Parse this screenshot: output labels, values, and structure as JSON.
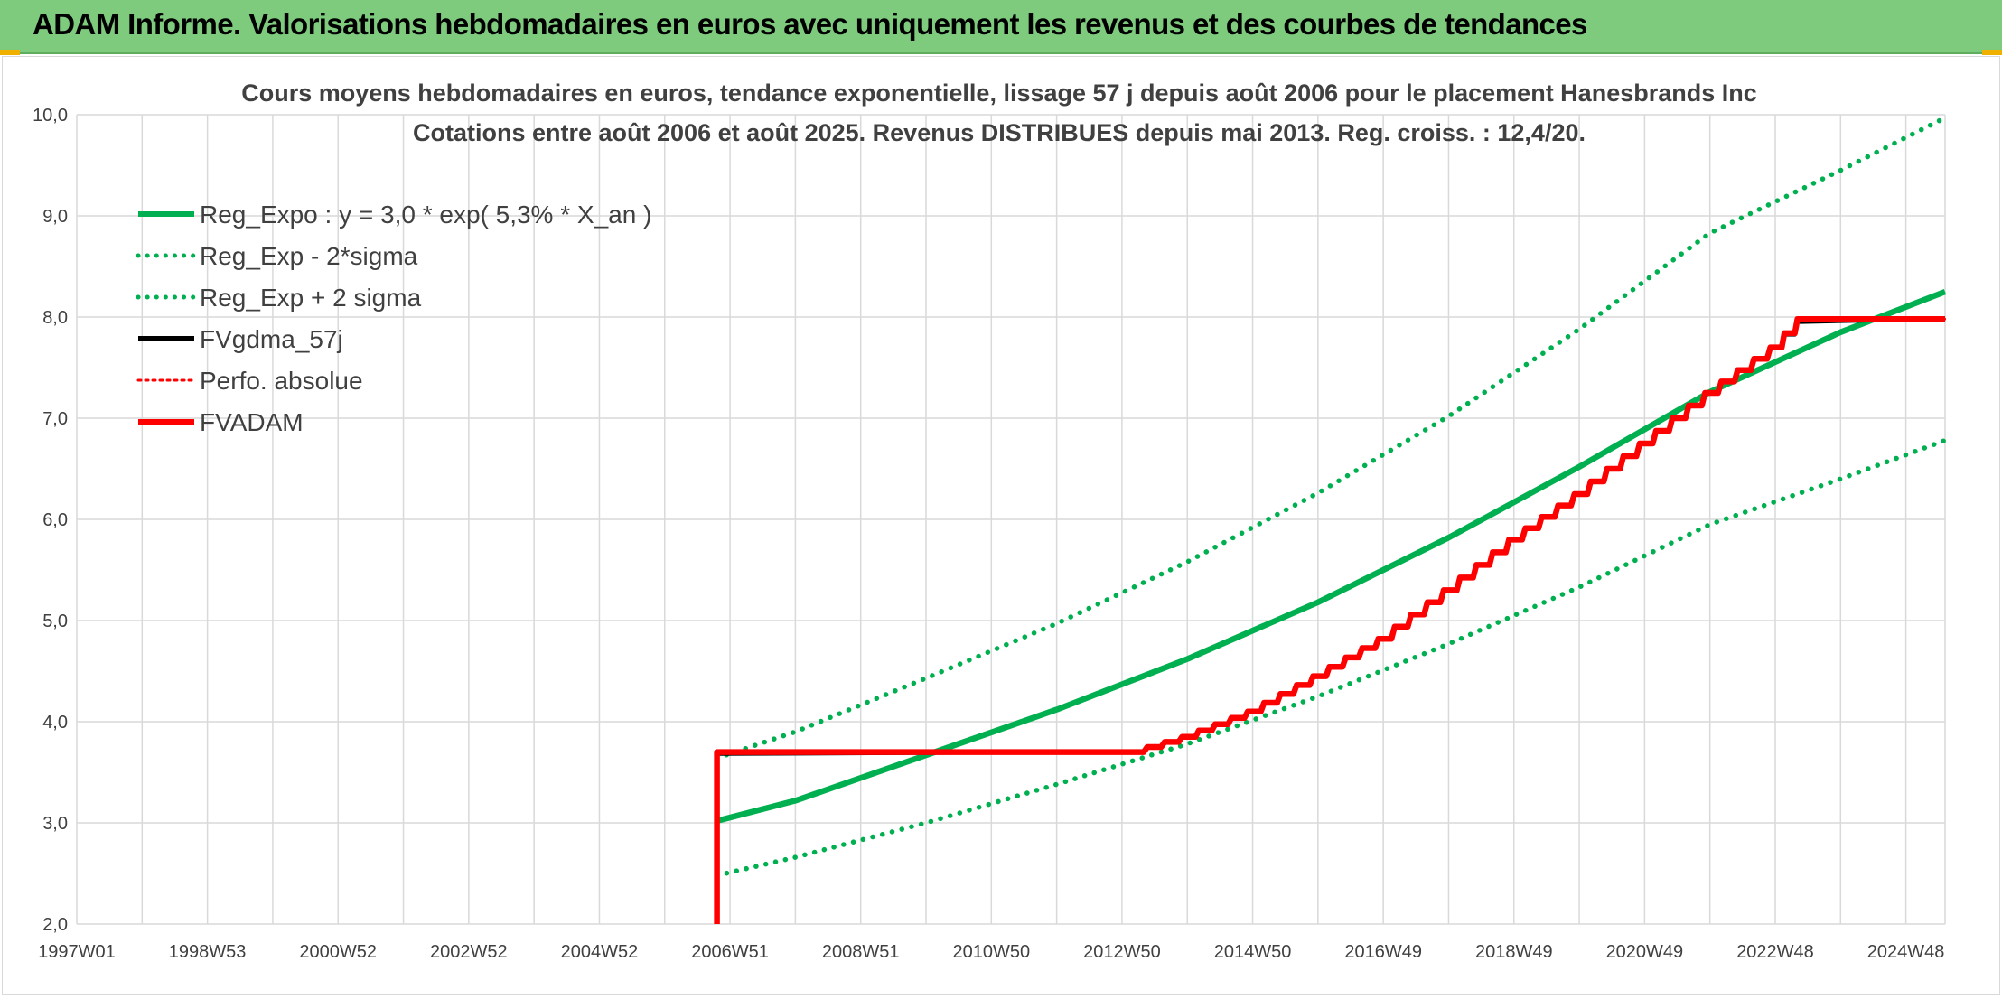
{
  "banner": {
    "title": "ADAM Informe. Valorisations hebdomadaires en euros avec uniquement les revenus et des courbes de tendances"
  },
  "colors": {
    "banner_bg": "#7ecb7e",
    "regression": "#00b050",
    "fvgdma": "#000000",
    "fvadam": "#ff0000",
    "grid": "#d9d9d9"
  },
  "chart_data": {
    "type": "line",
    "title": "Cours moyens hebdomadaires en euros, tendance exponentielle, lissage 57 j depuis août 2006 pour le placement Hanesbrands Inc",
    "subtitle": "Cotations entre août 2006 et août 2025. Revenus DISTRIBUES depuis mai 2013. Reg. croiss. : 12,4/20.",
    "xlabel": "",
    "ylabel": "",
    "ylim": [
      2.0,
      10.0
    ],
    "yticks": [
      "2,0",
      "3,0",
      "4,0",
      "5,0",
      "6,0",
      "7,0",
      "8,0",
      "9,0",
      "10,0"
    ],
    "xlim": [
      1997.0,
      2025.6
    ],
    "xticks": [
      {
        "label": "1997W01",
        "year": 1997.0
      },
      {
        "label": "1998W53",
        "year": 1999.0
      },
      {
        "label": "2000W52",
        "year": 2001.0
      },
      {
        "label": "2002W52",
        "year": 2003.0
      },
      {
        "label": "2004W52",
        "year": 2005.0
      },
      {
        "label": "2006W51",
        "year": 2007.0
      },
      {
        "label": "2008W51",
        "year": 2009.0
      },
      {
        "label": "2010W50",
        "year": 2011.0
      },
      {
        "label": "2012W50",
        "year": 2013.0
      },
      {
        "label": "2014W50",
        "year": 2015.0
      },
      {
        "label": "2016W49",
        "year": 2017.0
      },
      {
        "label": "2018W49",
        "year": 2019.0
      },
      {
        "label": "2020W49",
        "year": 2021.0
      },
      {
        "label": "2022W48",
        "year": 2023.0
      },
      {
        "label": "2024W48",
        "year": 2025.0
      }
    ],
    "grid": true,
    "legend_position": "top-left",
    "series": [
      {
        "name": "Reg_Expo : y = 3,0 * exp( 5,3% *  X_an )",
        "style": "solid",
        "color": "#00b050",
        "x": [
          2006.8,
          2008.0,
          2010.0,
          2012.0,
          2014.0,
          2016.0,
          2018.0,
          2020.0,
          2022.0,
          2024.0,
          2025.6
        ],
        "values": [
          3.02,
          3.22,
          3.67,
          4.12,
          4.62,
          5.18,
          5.82,
          6.52,
          7.26,
          7.85,
          8.25
        ]
      },
      {
        "name": "Reg_Exp - 2*sigma",
        "style": "dotted",
        "color": "#00b050",
        "x": [
          2006.8,
          2008.0,
          2010.0,
          2012.0,
          2014.0,
          2016.0,
          2018.0,
          2020.0,
          2022.0,
          2024.0,
          2025.6
        ],
        "values": [
          2.48,
          2.66,
          3.0,
          3.38,
          3.78,
          4.25,
          4.77,
          5.33,
          5.95,
          6.4,
          6.78
        ]
      },
      {
        "name": "Reg_Exp + 2 sigma",
        "style": "dotted",
        "color": "#00b050",
        "x": [
          2006.8,
          2008.0,
          2010.0,
          2012.0,
          2014.0,
          2016.0,
          2018.0,
          2020.0,
          2022.0,
          2024.0,
          2025.6
        ],
        "values": [
          3.64,
          3.9,
          4.43,
          4.97,
          5.58,
          6.26,
          7.02,
          7.88,
          8.83,
          9.45,
          9.97
        ]
      },
      {
        "name": "FVgdma_57j",
        "style": "solid",
        "color": "#000000",
        "x": [
          2006.8,
          2013.2,
          2014.0,
          2015.0,
          2016.0,
          2017.0,
          2018.0,
          2019.0,
          2020.0,
          2021.0,
          2022.0,
          2023.0,
          2023.4,
          2025.6
        ],
        "values": [
          3.68,
          3.7,
          3.85,
          4.1,
          4.45,
          4.82,
          5.3,
          5.8,
          6.25,
          6.75,
          7.25,
          7.7,
          7.95,
          7.98
        ]
      },
      {
        "name": "Perfo. absolue",
        "style": "dotted",
        "color": "#ff0000",
        "x": [
          2006.8,
          2013.2,
          2014.0,
          2015.0,
          2016.0,
          2017.0,
          2018.0,
          2019.0,
          2020.0,
          2021.0,
          2022.0,
          2023.0,
          2023.4,
          2025.6
        ],
        "values": [
          3.7,
          3.7,
          3.85,
          4.1,
          4.45,
          4.82,
          5.3,
          5.8,
          6.25,
          6.75,
          7.25,
          7.7,
          7.98,
          7.98
        ]
      },
      {
        "name": "FVADAM",
        "style": "solid",
        "color": "#ff0000",
        "x": [
          2006.8,
          2006.8,
          2013.2,
          2014.0,
          2015.0,
          2016.0,
          2017.0,
          2018.0,
          2019.0,
          2020.0,
          2021.0,
          2022.0,
          2023.0,
          2023.4,
          2025.6
        ],
        "values": [
          2.0,
          3.7,
          3.7,
          3.85,
          4.1,
          4.45,
          4.82,
          5.3,
          5.8,
          6.25,
          6.75,
          7.25,
          7.7,
          7.98,
          7.98
        ]
      }
    ]
  }
}
